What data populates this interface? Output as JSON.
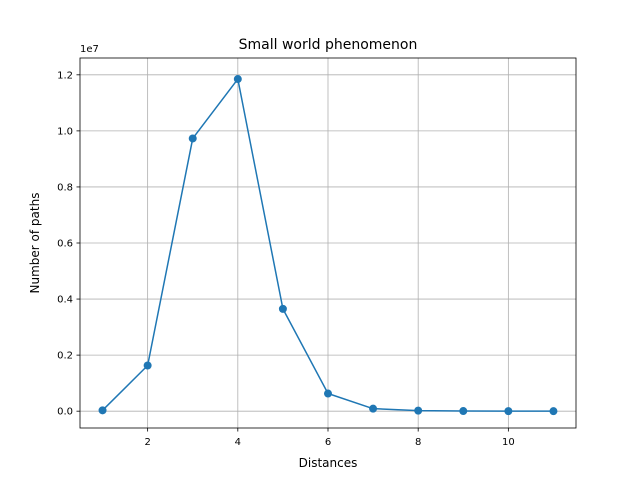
{
  "chart_data": {
    "type": "line",
    "title": "Small world phenomenon",
    "xlabel": "Distances",
    "ylabel": "Number of paths",
    "y_offset_label": "1e7",
    "x": [
      1,
      2,
      3,
      4,
      5,
      6,
      7,
      8,
      9,
      10,
      11
    ],
    "series": [
      {
        "values": [
          30000,
          1630000,
          9730000,
          11850000,
          3650000,
          630000,
          90000,
          20000,
          5000,
          2000,
          1000
        ],
        "color": "#1f77b4",
        "marker": "circle"
      }
    ],
    "xlim": [
      0.5,
      11.5
    ],
    "ylim": [
      -600000,
      12600000
    ],
    "xticks": [
      2,
      4,
      6,
      8,
      10
    ],
    "xtick_labels": [
      "2",
      "4",
      "6",
      "8",
      "10"
    ],
    "yticks": [
      0,
      2000000,
      4000000,
      6000000,
      8000000,
      10000000,
      12000000
    ],
    "ytick_labels": [
      "0.0",
      "0.2",
      "0.4",
      "0.6",
      "0.8",
      "1.0",
      "1.2"
    ],
    "grid": true,
    "legend": "none"
  }
}
